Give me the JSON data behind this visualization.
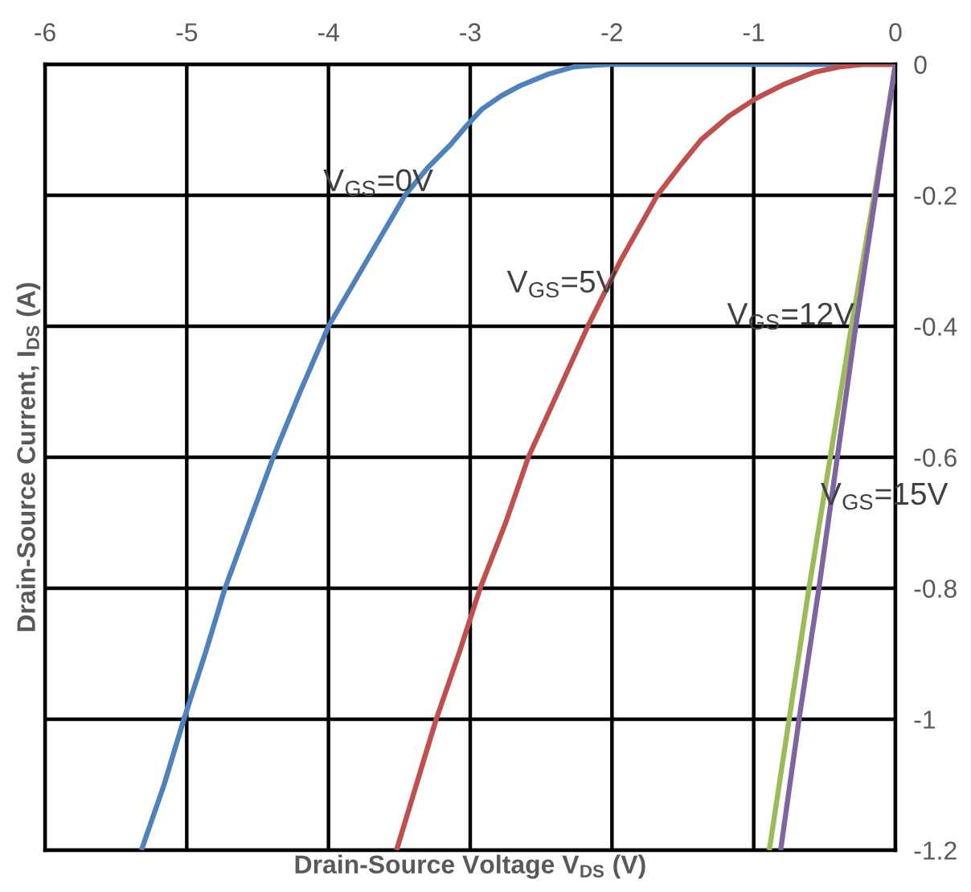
{
  "chart_data": {
    "type": "line",
    "xlabel": "Drain-Source Voltage V$_{DS}$ (V)",
    "ylabel": "Drain-Source Current, I$_{DS}$ (A)",
    "xlim": [
      -6,
      0
    ],
    "ylim": [
      -1.2,
      0
    ],
    "xticks": [
      -6,
      -5,
      -4,
      -3,
      -2,
      -1,
      0
    ],
    "yticks": [
      0,
      -0.2,
      -0.4,
      -0.6,
      -0.8,
      -1,
      -1.2
    ],
    "grid": true,
    "series": [
      {
        "name": "V$_{GS}$=0V",
        "color": "#4f81bd",
        "x": [
          -5.32,
          -5.16,
          -5.02,
          -4.87,
          -4.73,
          -4.56,
          -4.39,
          -4.2,
          -4.0,
          -3.73,
          -3.46,
          -3.3,
          -3.14,
          -3.03,
          -2.92,
          -2.78,
          -2.65,
          -2.45,
          -2.27,
          -2.1,
          -2.0,
          0
        ],
        "values": [
          -1.2,
          -1.1,
          -1.0,
          -0.9,
          -0.8,
          -0.7,
          -0.6,
          -0.5,
          -0.4,
          -0.3,
          -0.2,
          -0.158,
          -0.123,
          -0.095,
          -0.069,
          -0.048,
          -0.033,
          -0.015,
          -0.004,
          -0.001,
          0,
          0
        ]
      },
      {
        "name": "V$_{GS}$=5V",
        "color": "#c0504d",
        "x": [
          -3.52,
          -3.38,
          -3.24,
          -3.08,
          -2.93,
          -2.75,
          -2.59,
          -2.38,
          -2.17,
          -1.94,
          -1.68,
          -1.52,
          -1.37,
          -1.18,
          -0.99,
          -0.78,
          -0.57,
          -0.4,
          -0.23,
          0
        ],
        "values": [
          -1.2,
          -1.1,
          -1.0,
          -0.9,
          -0.8,
          -0.7,
          -0.6,
          -0.5,
          -0.4,
          -0.3,
          -0.2,
          -0.155,
          -0.115,
          -0.08,
          -0.053,
          -0.03,
          -0.012,
          -0.004,
          0,
          0
        ]
      },
      {
        "name": "V$_{GS}$=12V",
        "color": "#9bbb59",
        "x": [
          -0.89,
          -0.75,
          -0.61,
          -0.46,
          -0.31,
          -0.15,
          0
        ],
        "values": [
          -1.2,
          -1.0,
          -0.8,
          -0.6,
          -0.4,
          -0.2,
          0
        ]
      },
      {
        "name": "V$_{GS}$=15V",
        "color": "#8064a2",
        "x": [
          -0.81,
          -0.68,
          -0.54,
          -0.41,
          -0.28,
          -0.14,
          0
        ],
        "values": [
          -1.2,
          -1.0,
          -0.8,
          -0.6,
          -0.4,
          -0.2,
          0
        ]
      }
    ]
  }
}
